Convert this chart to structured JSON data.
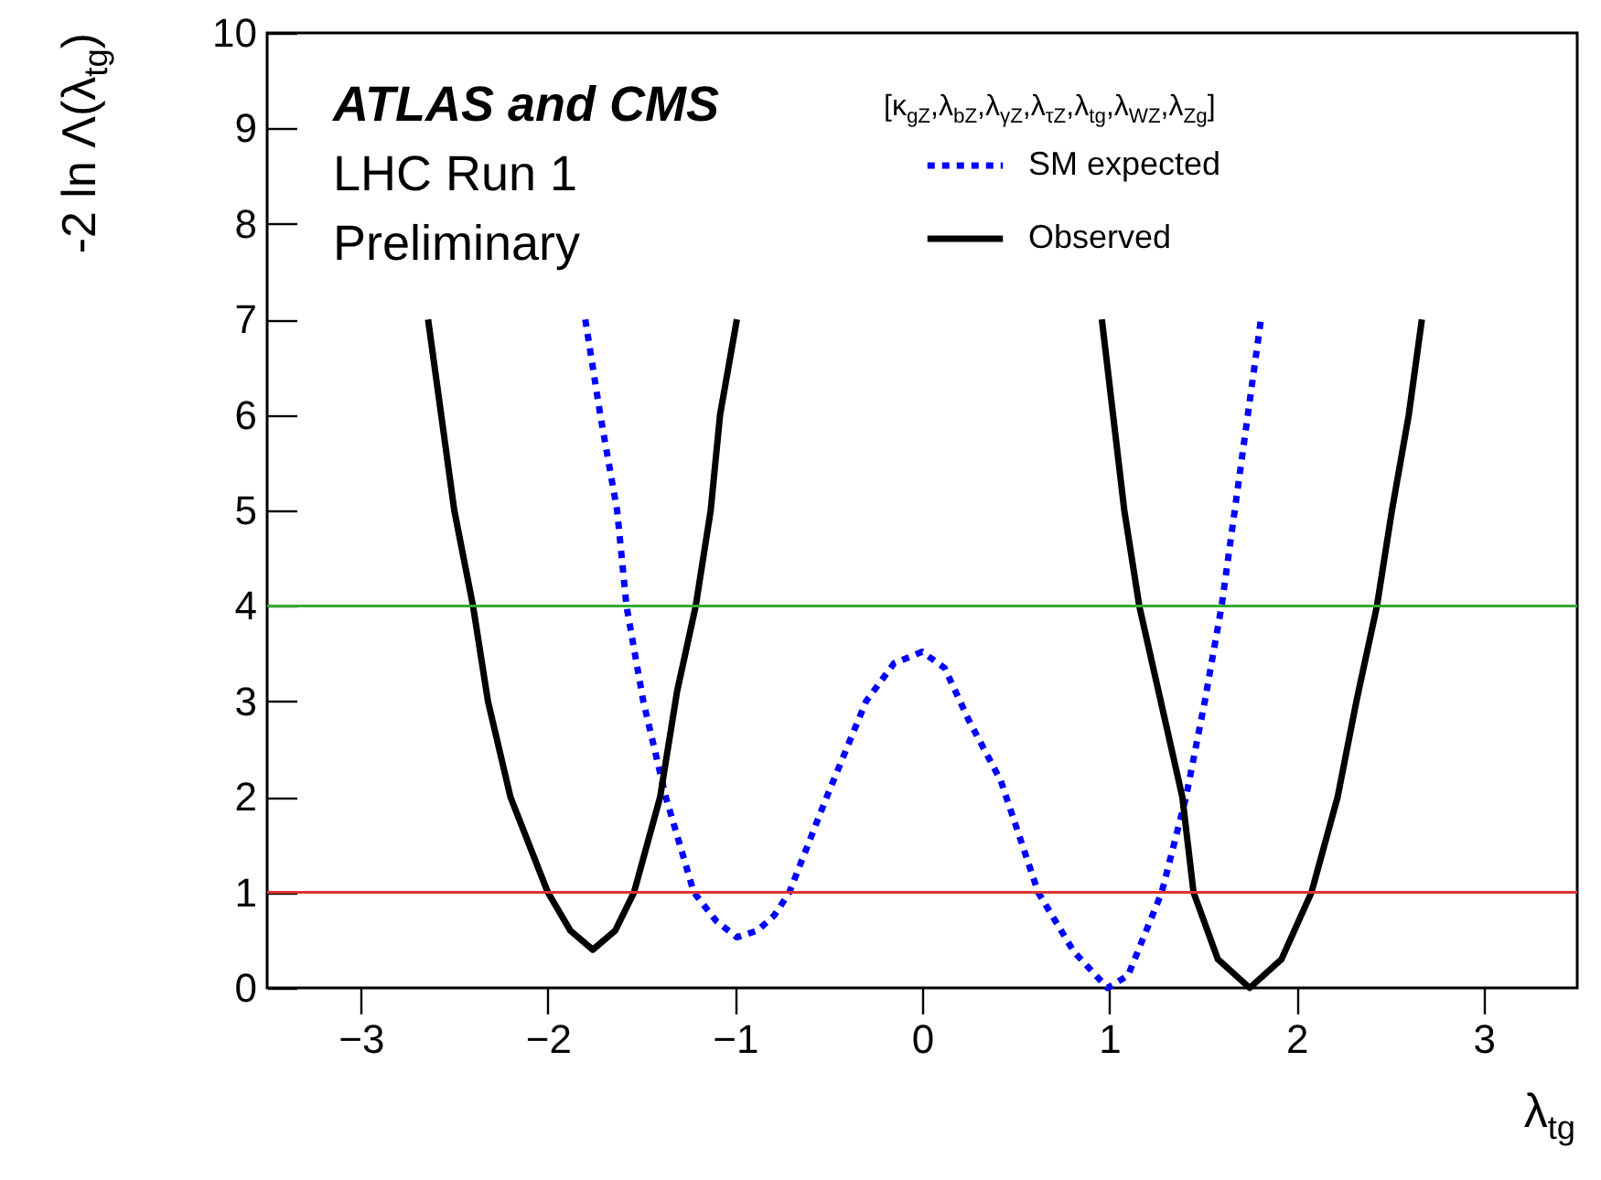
{
  "chart_data": {
    "type": "line",
    "xlabel": "λ$_{tg}$",
    "ylabel": "-2 ln Λ(λ$_{tg}$)",
    "legend_title": "[κ$_{gZ}$,λ$_{bZ}$,λ$_{γZ}$,λ$_{τZ}$,λ$_{tg}$,λ$_{WZ}$,λ$_{Zg}$]",
    "annotations": [
      "ATLAS and CMS",
      "LHC Run 1",
      "Preliminary"
    ],
    "xlim": [
      -3.5,
      3.5
    ],
    "ylim": [
      0,
      10
    ],
    "xticks": [
      {
        "value": -3,
        "label": "−3"
      },
      {
        "value": -2,
        "label": "−2"
      },
      {
        "value": -1,
        "label": "−1"
      },
      0,
      1,
      2,
      3
    ],
    "yticks": [
      0,
      1,
      2,
      3,
      4,
      5,
      6,
      7,
      8,
      9,
      10
    ],
    "grid": false,
    "legend": "top right",
    "series": [
      {
        "name": "SM expected",
        "color": "#0000ff",
        "line_style": "dotted",
        "x": [
          -1.8,
          -1.72,
          -1.63,
          -1.58,
          -1.49,
          -1.37,
          -1.22,
          -1.1,
          -0.99,
          -0.88,
          -0.79,
          -0.71,
          -0.51,
          -0.3,
          -0.15,
          0,
          0.12,
          0.25,
          0.42,
          0.62,
          0.81,
          0.99,
          1.1,
          1.28,
          1.41,
          1.51,
          1.6,
          1.67,
          1.74,
          1.81
        ],
        "values": [
          7,
          6,
          5,
          4,
          3,
          2,
          1,
          0.7,
          0.53,
          0.6,
          0.76,
          1,
          2,
          3,
          3.4,
          3.52,
          3.35,
          2.8,
          2.17,
          1,
          0.38,
          0,
          0.13,
          1,
          2,
          3,
          4,
          5,
          6,
          7
        ]
      },
      {
        "name": "Observed",
        "color": "#000000",
        "line_style": "solid",
        "x": [
          -2.64,
          -2.57,
          -2.5,
          -2.4,
          -2.32,
          -2.2,
          -2.0,
          -1.88,
          -1.76,
          -1.64,
          -1.54,
          -1.4,
          -1.31,
          -1.21,
          -1.13,
          -1.08,
          -0.99,
          null,
          0.96,
          1.02,
          1.08,
          1.16,
          1.29,
          1.39,
          1.45,
          1.58,
          1.75,
          1.92,
          2.08,
          2.22,
          2.32,
          2.43,
          2.51,
          2.6,
          2.67
        ],
        "values": [
          7,
          6,
          5,
          4,
          3,
          2,
          1,
          0.6,
          0.4,
          0.6,
          1,
          2,
          3.1,
          4,
          5,
          6,
          7,
          null,
          7,
          6,
          5,
          4,
          2.87,
          2,
          1,
          0.3,
          0,
          0.3,
          1,
          2,
          3,
          4,
          5,
          6,
          7
        ]
      }
    ],
    "ref_lines": [
      {
        "axis": "y",
        "value": 1,
        "color": "#dd3333"
      },
      {
        "axis": "y",
        "value": 4,
        "color": "#33aa33"
      }
    ]
  }
}
